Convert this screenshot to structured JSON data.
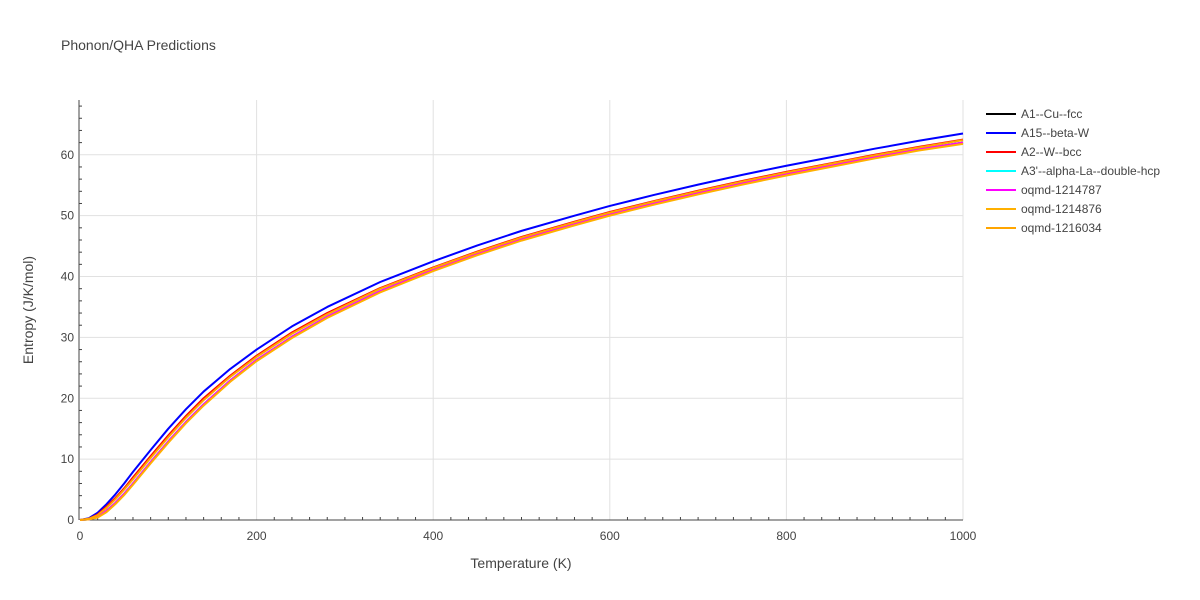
{
  "chart_data": {
    "type": "line",
    "title": "Phonon/QHA Predictions",
    "xlabel": "Temperature (K)",
    "ylabel": "Entropy (J/K/mol)",
    "xlim": [
      0,
      1000
    ],
    "ylim": [
      0,
      69
    ],
    "xticks": [
      0,
      200,
      400,
      600,
      800,
      1000
    ],
    "yticks": [
      0,
      10,
      20,
      30,
      40,
      50,
      60
    ],
    "grid": true,
    "legend_position": "top-right",
    "series": [
      {
        "name": "A1--Cu--fcc",
        "color": "#000000",
        "x": [
          0,
          10,
          20,
          30,
          40,
          50,
          60,
          80,
          100,
          120,
          140,
          170,
          200,
          240,
          280,
          340,
          400,
          450,
          500,
          560,
          600,
          650,
          700,
          750,
          800,
          850,
          900,
          950,
          1000
        ],
        "y": [
          0,
          0.1,
          0.5,
          1.5,
          2.8,
          4.3,
          6.0,
          9.5,
          12.9,
          16.1,
          19.0,
          22.9,
          26.3,
          30.1,
          33.4,
          37.6,
          41.1,
          43.7,
          46.1,
          48.6,
          50.2,
          52.0,
          53.7,
          55.3,
          56.8,
          58.2,
          59.6,
          60.9,
          62.0
        ]
      },
      {
        "name": "A15--beta-W",
        "color": "#0000ff",
        "x": [
          0,
          10,
          20,
          30,
          40,
          50,
          60,
          80,
          100,
          120,
          140,
          170,
          200,
          240,
          280,
          340,
          400,
          450,
          500,
          560,
          600,
          650,
          700,
          750,
          800,
          850,
          900,
          950,
          1000
        ],
        "y": [
          0,
          0.3,
          1.2,
          2.6,
          4.2,
          6.0,
          7.9,
          11.5,
          15.0,
          18.2,
          21.1,
          24.8,
          28.0,
          31.8,
          35.0,
          39.1,
          42.5,
          45.1,
          47.5,
          50.0,
          51.6,
          53.4,
          55.1,
          56.7,
          58.2,
          59.6,
          61.0,
          62.3,
          63.5
        ]
      },
      {
        "name": "A2--W--bcc",
        "color": "#ff0000",
        "x": [
          0,
          10,
          20,
          30,
          40,
          50,
          60,
          80,
          100,
          120,
          140,
          170,
          200,
          240,
          280,
          340,
          400,
          450,
          500,
          560,
          600,
          650,
          700,
          750,
          800,
          850,
          900,
          950,
          1000
        ],
        "y": [
          0,
          0.2,
          0.9,
          2.2,
          3.6,
          5.2,
          7.0,
          10.5,
          13.9,
          17.1,
          20.0,
          23.7,
          27.0,
          30.8,
          34.0,
          38.1,
          41.5,
          44.1,
          46.5,
          49.0,
          50.6,
          52.4,
          54.1,
          55.7,
          57.2,
          58.6,
          60.0,
          61.3,
          62.5
        ]
      },
      {
        "name": "A3'--alpha-La--double-hcp",
        "color": "#00ffff",
        "x": [
          0,
          10,
          20,
          30,
          40,
          50,
          60,
          80,
          100,
          120,
          140,
          170,
          200,
          240,
          280,
          340,
          400,
          450,
          500,
          560,
          600,
          650,
          700,
          750,
          800,
          850,
          900,
          950,
          1000
        ],
        "y": [
          0,
          0.1,
          0.5,
          1.5,
          2.8,
          4.3,
          6.0,
          9.5,
          12.9,
          16.1,
          19.0,
          22.9,
          26.3,
          30.1,
          33.4,
          37.6,
          41.1,
          43.7,
          46.1,
          48.6,
          50.2,
          52.0,
          53.7,
          55.3,
          56.8,
          58.2,
          59.6,
          60.9,
          62.0
        ]
      },
      {
        "name": "oqmd-1214787",
        "color": "#ff00ff",
        "x": [
          0,
          10,
          20,
          30,
          40,
          50,
          60,
          80,
          100,
          120,
          140,
          170,
          200,
          240,
          280,
          340,
          400,
          450,
          500,
          560,
          600,
          650,
          700,
          750,
          800,
          850,
          900,
          950,
          1000
        ],
        "y": [
          0,
          0.1,
          0.5,
          1.5,
          2.8,
          4.3,
          6.0,
          9.5,
          12.9,
          16.1,
          19.0,
          22.9,
          26.3,
          30.1,
          33.4,
          37.6,
          41.1,
          43.7,
          46.1,
          48.6,
          50.2,
          52.0,
          53.7,
          55.3,
          56.8,
          58.2,
          59.6,
          60.9,
          62.0
        ]
      },
      {
        "name": "oqmd-1214876",
        "color": "#ffb000",
        "x": [
          0,
          10,
          20,
          30,
          40,
          50,
          60,
          80,
          100,
          120,
          140,
          170,
          200,
          240,
          280,
          340,
          400,
          450,
          500,
          560,
          600,
          650,
          700,
          750,
          800,
          850,
          900,
          950,
          1000
        ],
        "y": [
          0,
          0.1,
          0.4,
          1.3,
          2.6,
          4.1,
          5.8,
          9.3,
          12.7,
          15.9,
          18.8,
          22.7,
          26.1,
          29.9,
          33.2,
          37.4,
          40.9,
          43.5,
          45.9,
          48.4,
          50.0,
          51.8,
          53.5,
          55.1,
          56.6,
          58.0,
          59.4,
          60.7,
          61.8
        ]
      },
      {
        "name": "oqmd-1216034",
        "color": "#ffa500",
        "x": [
          0,
          10,
          20,
          30,
          40,
          50,
          60,
          80,
          100,
          120,
          140,
          170,
          200,
          240,
          280,
          340,
          400,
          450,
          500,
          560,
          600,
          650,
          700,
          750,
          800,
          850,
          900,
          950,
          1000
        ],
        "y": [
          0,
          0.2,
          0.8,
          2.0,
          3.4,
          5.0,
          6.7,
          10.2,
          13.6,
          16.8,
          19.7,
          23.5,
          26.8,
          30.6,
          33.8,
          38.0,
          41.4,
          44.0,
          46.4,
          48.9,
          50.5,
          52.3,
          54.0,
          55.6,
          57.1,
          58.5,
          59.9,
          61.2,
          62.4
        ]
      }
    ]
  }
}
